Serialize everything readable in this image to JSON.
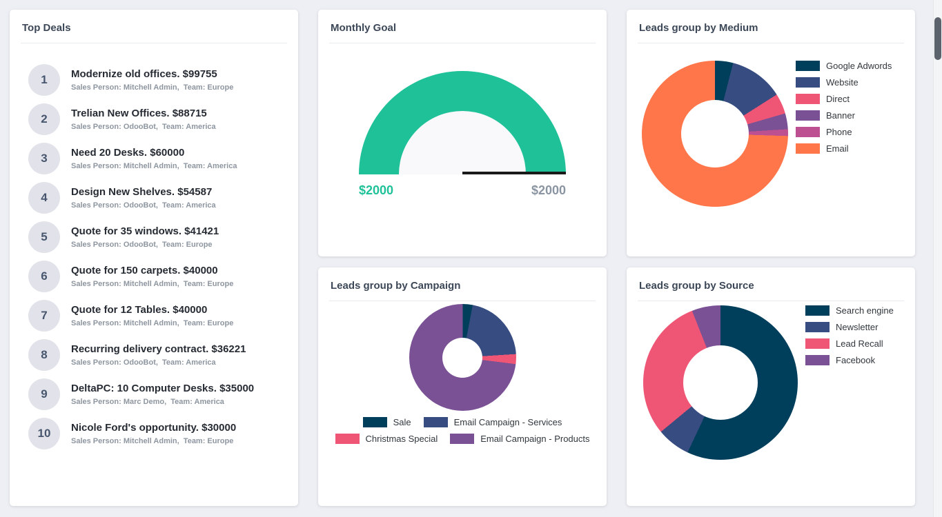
{
  "top_deals": {
    "title": "Top Deals",
    "items": [
      {
        "rank": "1",
        "title": "Modernize old offices. $99755",
        "subtitle": "Sales Person: Mitchell Admin,  Team: Europe"
      },
      {
        "rank": "2",
        "title": "Trelian New Offices. $88715",
        "subtitle": "Sales Person: OdooBot,  Team: America"
      },
      {
        "rank": "3",
        "title": "Need 20 Desks. $60000",
        "subtitle": "Sales Person: Mitchell Admin,  Team: America"
      },
      {
        "rank": "4",
        "title": "Design New Shelves. $54587",
        "subtitle": "Sales Person: OdooBot,  Team: America"
      },
      {
        "rank": "5",
        "title": "Quote for 35 windows. $41421",
        "subtitle": "Sales Person: OdooBot,  Team: Europe"
      },
      {
        "rank": "6",
        "title": "Quote for 150 carpets. $40000",
        "subtitle": "Sales Person: Mitchell Admin,  Team: Europe"
      },
      {
        "rank": "7",
        "title": "Quote for 12 Tables. $40000",
        "subtitle": "Sales Person: Mitchell Admin,  Team: Europe"
      },
      {
        "rank": "8",
        "title": "Recurring delivery contract. $36221",
        "subtitle": "Sales Person: OdooBot,  Team: America"
      },
      {
        "rank": "9",
        "title": "DeltaPC: 10 Computer Desks. $35000",
        "subtitle": "Sales Person: Marc Demo,  Team: America"
      },
      {
        "rank": "10",
        "title": "Nicole Ford's opportunity. $30000",
        "subtitle": "Sales Person: Mitchell Admin,  Team: Europe"
      }
    ]
  },
  "chart_data": [
    {
      "type": "gauge",
      "title": "Monthly Goal",
      "value": 2000,
      "max": 2000,
      "min_label": "$2000",
      "max_label": "$2000",
      "color": "#1ec198",
      "hole_color": "#f9f9fb",
      "needle_color": "#1a1a1a"
    },
    {
      "type": "pie",
      "title": "Leads group by Medium",
      "labels": [
        "Google Adwords",
        "Website",
        "Direct",
        "Banner",
        "Phone",
        "Email"
      ],
      "values": [
        4,
        12,
        4.5,
        3.5,
        1.5,
        74.5
      ],
      "colors": [
        "#003f5c",
        "#374c80",
        "#ef5675",
        "#7a5195",
        "#bc5090",
        "#ff764a"
      ],
      "legend_position": "right"
    },
    {
      "type": "pie",
      "title": "Leads group by Campaign",
      "labels": [
        "Sale",
        "Email Campaign - Services",
        "Christmas Special",
        "Email Campaign - Products"
      ],
      "values": [
        3,
        21,
        3,
        73
      ],
      "colors": [
        "#003f5c",
        "#374c80",
        "#ef5675",
        "#7a5195"
      ],
      "legend_position": "bottom"
    },
    {
      "type": "pie",
      "title": "Leads group by Source",
      "labels": [
        "Search engine",
        "Newsletter",
        "Lead Recall",
        "Facebook"
      ],
      "values": [
        57,
        7,
        30,
        6
      ],
      "colors": [
        "#003f5c",
        "#374c80",
        "#ef5675",
        "#7a5195"
      ],
      "legend_position": "right"
    }
  ]
}
